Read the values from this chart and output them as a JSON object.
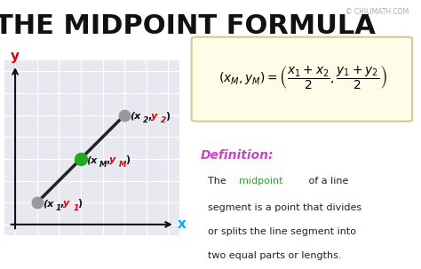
{
  "title": "THE MIDPOINT FORMULA",
  "title_fontsize": 22,
  "copyright_text": "© CHILIMATH.COM",
  "bg_color": "#ffffff",
  "grid_bg_color": "#e8e8f0",
  "formula_bg_color": "#fffde7",
  "formula_border_color": "#cccc99",
  "point1": [
    1,
    1
  ],
  "point2": [
    5,
    5
  ],
  "midpoint": [
    3,
    3
  ],
  "point_color_1": "#999999",
  "point_color_2": "#999999",
  "point_color_mid": "#22aa22",
  "line_color": "#222222",
  "label1_text": "(x₁,y₁)",
  "label2_text": "(x₂,y₂)",
  "labelM_text": "(xₘ,yₘ)",
  "axis_label_x": "x",
  "axis_label_y": "y",
  "axis_color_x": "#00aaff",
  "axis_color_y": "#dd0000",
  "definition_label": "Definition:",
  "definition_color": "#cc44cc",
  "definition_text_1": "The ",
  "definition_midpoint": "midpoint",
  "definition_midpoint_color": "#22aa22",
  "definition_text_2": " of a line\nsegment is a point that divides\nor splits the line segment into\ntwo equal parts or lengths."
}
